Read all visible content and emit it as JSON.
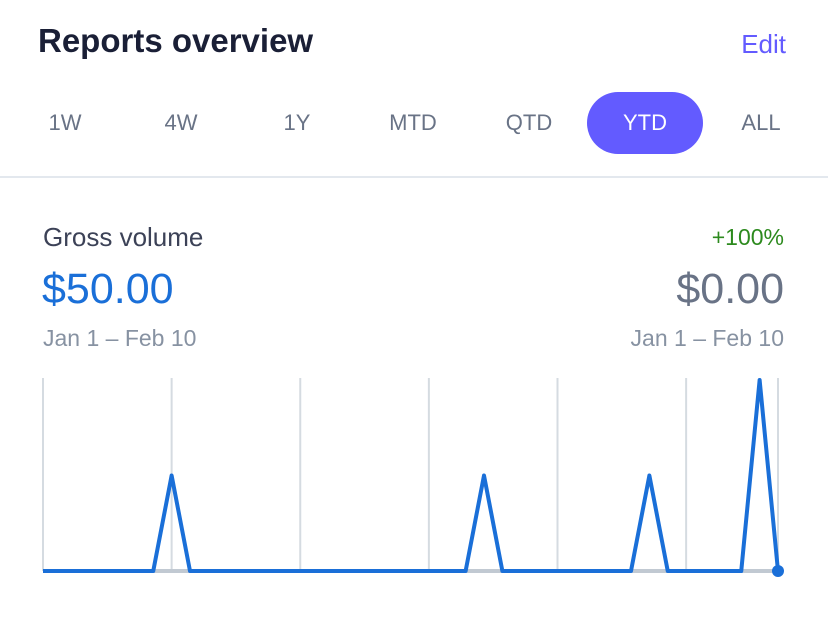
{
  "header": {
    "title": "Reports overview",
    "action": "Edit"
  },
  "tabs": {
    "items": [
      "1W",
      "4W",
      "1Y",
      "MTD",
      "QTD",
      "YTD",
      "ALL"
    ],
    "selected": 5
  },
  "chart_data": {
    "type": "line",
    "title": "Gross volume",
    "change": "+100%",
    "current_value": "$50.00",
    "current_period": "Jan 1 – Feb 10",
    "previous_value": "$0.00",
    "previous_period": "Jan 1 – Feb 10",
    "categories": [
      null,
      null,
      null,
      null,
      null,
      null,
      null,
      null,
      null,
      null,
      null,
      null,
      null,
      null,
      null,
      null,
      null,
      null,
      null,
      null,
      null,
      null,
      null,
      null,
      null,
      null,
      null,
      null,
      null,
      null,
      null,
      null,
      null,
      null,
      null,
      null,
      null,
      null,
      null,
      null,
      null
    ],
    "series": [
      {
        "color": "#1a6fd8",
        "values": [
          0,
          0,
          0,
          0,
          0,
          0,
          0,
          10,
          0,
          0,
          0,
          0,
          0,
          0,
          0,
          0,
          0,
          0,
          0,
          0,
          0,
          0,
          0,
          0,
          10,
          0,
          0,
          0,
          0,
          0,
          0,
          0,
          0,
          10,
          0,
          0,
          0,
          0,
          0,
          20,
          0
        ]
      }
    ],
    "ylim": [
      0,
      20
    ]
  }
}
